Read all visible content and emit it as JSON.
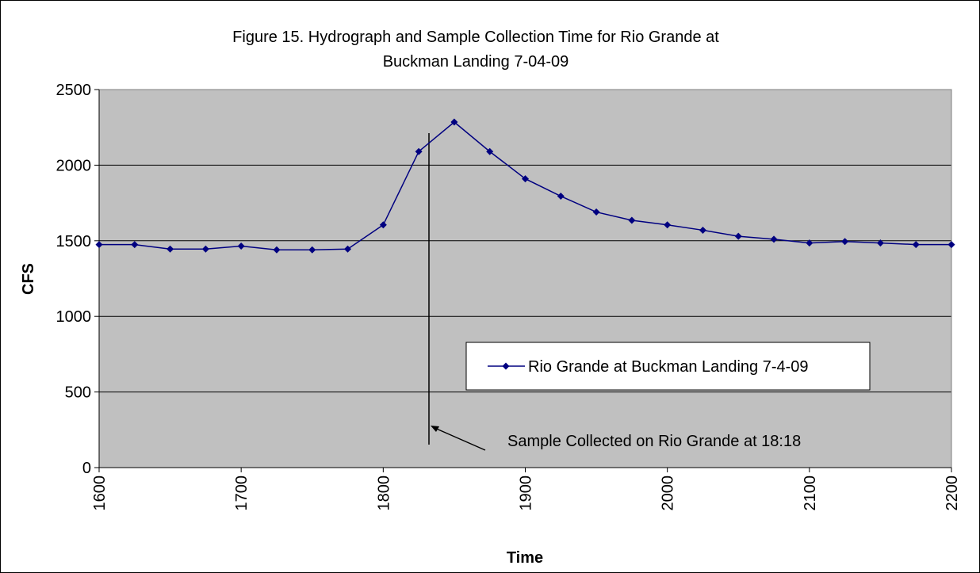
{
  "chart_data": {
    "type": "line",
    "title": [
      "Figure 15. Hydrograph and Sample Collection Time for Rio Grande at",
      "Buckman Landing 7-04-09"
    ],
    "x_label": "Time",
    "y_label": "CFS",
    "x": [
      1600,
      1625,
      1650,
      1675,
      1700,
      1725,
      1750,
      1775,
      1800,
      1825,
      1850,
      1875,
      1900,
      1925,
      1950,
      1975,
      2000,
      2025,
      2050,
      2075,
      2100,
      2125,
      2150,
      2175,
      2200
    ],
    "series": [
      {
        "name": "Rio Grande at Buckman Landing 7-4-09",
        "color": "#000080",
        "values": [
          1475,
          1475,
          1445,
          1445,
          1465,
          1440,
          1440,
          1445,
          1605,
          2090,
          2285,
          2090,
          1910,
          1795,
          1690,
          1635,
          1605,
          1570,
          1530,
          1510,
          1485,
          1495,
          1485,
          1475,
          1475
        ]
      }
    ],
    "xlim": [
      1600,
      2200
    ],
    "xticks": [
      1600,
      1700,
      1800,
      1900,
      2000,
      2100,
      2200
    ],
    "ylim": [
      0,
      2500
    ],
    "yticks": [
      0,
      500,
      1000,
      1500,
      2000,
      2500
    ],
    "grid": true,
    "annotation": "Sample Collected on Rio Grande at 18:18"
  }
}
